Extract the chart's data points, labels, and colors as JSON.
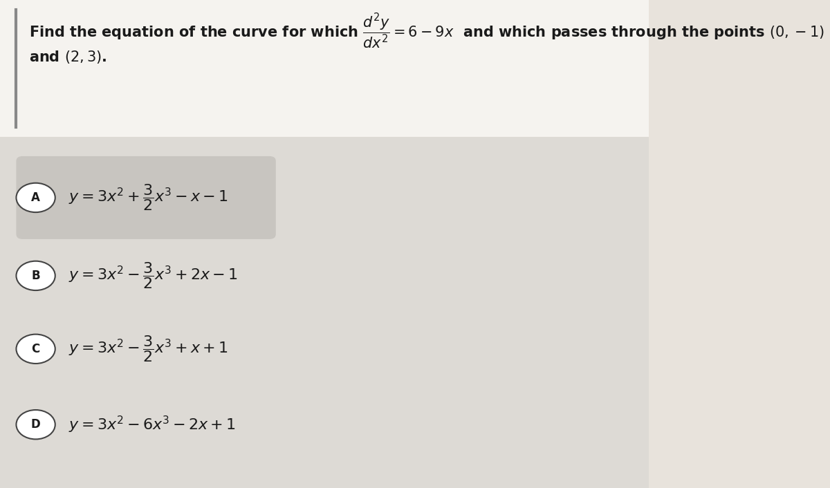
{
  "background_color": "#e8e3dc",
  "question_box_color": "#f5f3ef",
  "options_bg_color": "#dddad5",
  "highlight_A_color": "#c8c5c0",
  "text_color": "#1a1a1a",
  "circle_edge_color": "#444444",
  "left_border_color": "#888888",
  "question_line1": "Find the equation of the curve for which ",
  "question_deriv": "$\\dfrac{d^2y}{dx^2} = 6 - 9x$",
  "question_rest": "  and which passes through the points $(0, -1)$",
  "question_line2": "and $(2, 3)$.",
  "options": [
    {
      "label": "A",
      "formula": "$y=3x^2+\\dfrac{3}{2}x^3-x-1$",
      "highlight": true
    },
    {
      "label": "B",
      "formula": "$y=3x^2-\\dfrac{3}{2}x^3+2x-1$",
      "highlight": false
    },
    {
      "label": "C",
      "formula": "$y=3x^2-\\dfrac{3}{2}x^3+x+1$",
      "highlight": false
    },
    {
      "label": "D",
      "formula": "$y=3x^2-6x^3-2x+1$",
      "highlight": false
    }
  ],
  "title_fontsize": 15,
  "option_fontsize": 15,
  "fig_width": 12.0,
  "fig_height": 7.06
}
